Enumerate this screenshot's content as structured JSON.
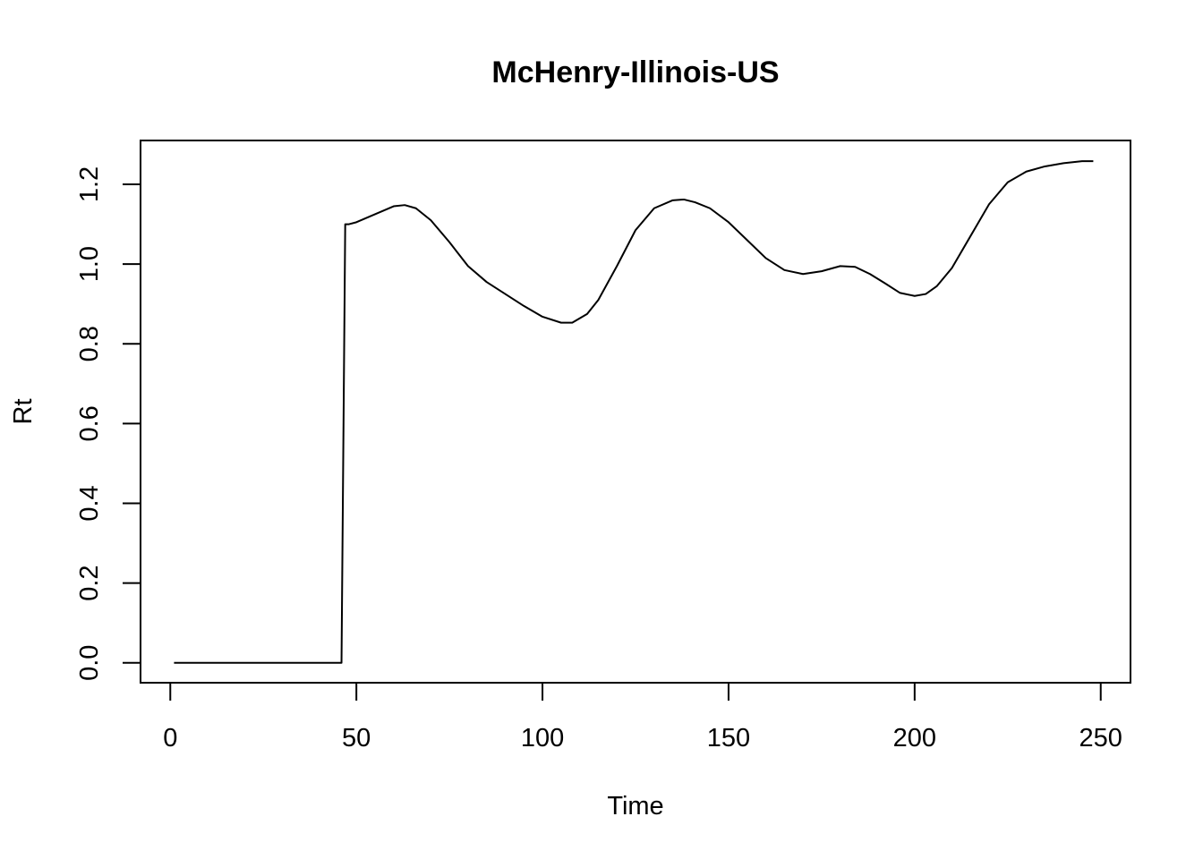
{
  "chart_data": {
    "type": "line",
    "title": "McHenry-Illinois-US",
    "xlabel": "Time",
    "ylabel": "Rt",
    "xlim": [
      -8,
      258
    ],
    "ylim": [
      -0.05,
      1.31
    ],
    "x_ticks": [
      0,
      50,
      100,
      150,
      200,
      250
    ],
    "y_ticks": [
      0.0,
      0.2,
      0.4,
      0.6,
      0.8,
      1.0,
      1.2
    ],
    "x_tick_labels": [
      "0",
      "50",
      "100",
      "150",
      "200",
      "250"
    ],
    "y_tick_labels": [
      "0.0",
      "0.2",
      "0.4",
      "0.6",
      "0.8",
      "1.0",
      "1.2"
    ],
    "grid": false,
    "line_color": "#000000",
    "series": [
      {
        "x": [
          1,
          10,
          20,
          30,
          40,
          46,
          47,
          48,
          50,
          55,
          60,
          63,
          66,
          70,
          75,
          80,
          85,
          90,
          95,
          100,
          105,
          108,
          112,
          115,
          120,
          125,
          130,
          135,
          138,
          141,
          145,
          150,
          155,
          160,
          165,
          170,
          175,
          180,
          184,
          188,
          192,
          196,
          200,
          203,
          206,
          210,
          215,
          220,
          225,
          230,
          235,
          240,
          245,
          248
        ],
        "y": [
          0.0,
          0.0,
          0.0,
          0.0,
          0.0,
          0.0,
          1.1,
          1.1,
          1.105,
          1.125,
          1.145,
          1.148,
          1.14,
          1.11,
          1.055,
          0.995,
          0.955,
          0.925,
          0.895,
          0.868,
          0.853,
          0.853,
          0.875,
          0.91,
          0.995,
          1.085,
          1.14,
          1.16,
          1.162,
          1.155,
          1.14,
          1.105,
          1.06,
          1.015,
          0.985,
          0.975,
          0.982,
          0.995,
          0.993,
          0.975,
          0.952,
          0.928,
          0.92,
          0.925,
          0.945,
          0.99,
          1.07,
          1.15,
          1.205,
          1.232,
          1.245,
          1.253,
          1.258,
          1.258
        ]
      }
    ]
  }
}
